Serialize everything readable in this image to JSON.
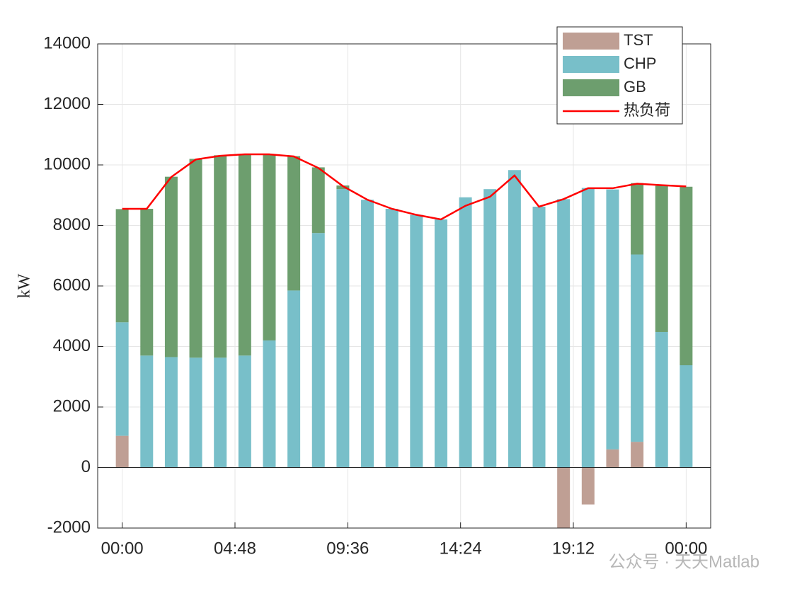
{
  "chart_data": {
    "type": "bar",
    "y_label": "kW",
    "watermark": "公众号 · 天天Matlab",
    "x": [
      0,
      1,
      2,
      3,
      4,
      5,
      6,
      7,
      8,
      9,
      10,
      11,
      12,
      13,
      14,
      15,
      16,
      17,
      18,
      19,
      20,
      21,
      22,
      23
    ],
    "xlim": [
      -1,
      24
    ],
    "xticks": [
      {
        "value": 0,
        "label": "00:00"
      },
      {
        "value": 4.6,
        "label": "04:48"
      },
      {
        "value": 9.2,
        "label": "09:36"
      },
      {
        "value": 13.8,
        "label": "14:24"
      },
      {
        "value": 18.4,
        "label": "19:12"
      },
      {
        "value": 23,
        "label": "00:00"
      }
    ],
    "ylim": [
      -2000,
      14000
    ],
    "yticks": [
      -2000,
      0,
      2000,
      4000,
      6000,
      8000,
      10000,
      12000,
      14000
    ],
    "grid": true,
    "legend": "top-right",
    "series": [
      {
        "name": "TST",
        "color": "#bf9f94",
        "kind": "bar",
        "values": [
          1050,
          0,
          0,
          0,
          0,
          0,
          0,
          0,
          0,
          0,
          0,
          0,
          0,
          0,
          0,
          0,
          0,
          0,
          -2000,
          -1220,
          600,
          850,
          0,
          0
        ]
      },
      {
        "name": "CHP",
        "color": "#78bfc9",
        "kind": "bar",
        "values": [
          3750,
          3700,
          3650,
          3630,
          3630,
          3700,
          4200,
          5850,
          7750,
          9200,
          8850,
          8550,
          8350,
          8200,
          8930,
          9200,
          9830,
          8620,
          8870,
          9240,
          8590,
          6190,
          4480,
          3380
        ]
      },
      {
        "name": "GB",
        "color": "#6d9e6e",
        "kind": "bar",
        "values": [
          3740,
          4850,
          5960,
          6570,
          6690,
          6660,
          6160,
          4440,
          2170,
          120,
          0,
          0,
          0,
          0,
          0,
          0,
          0,
          0,
          0,
          0,
          0,
          2360,
          4830,
          5900
        ]
      },
      {
        "name": "热负荷",
        "color": "#ff0000",
        "kind": "line",
        "values": [
          8550,
          8550,
          9600,
          10180,
          10300,
          10350,
          10350,
          10280,
          9900,
          9300,
          8850,
          8550,
          8350,
          8200,
          8650,
          8950,
          9650,
          8620,
          8870,
          9230,
          9230,
          9380,
          9330,
          9290
        ]
      }
    ]
  }
}
